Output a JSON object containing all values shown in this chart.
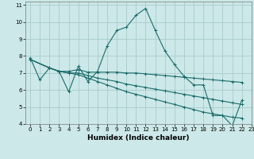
{
  "xlabel": "Humidex (Indice chaleur)",
  "bg_color": "#cce8e8",
  "grid_color": "#aacccc",
  "line_color": "#1a6b6b",
  "xlim": [
    -0.5,
    23
  ],
  "ylim": [
    4,
    11.2
  ],
  "yticks": [
    4,
    5,
    6,
    7,
    8,
    9,
    10,
    11
  ],
  "xticks": [
    0,
    1,
    2,
    3,
    4,
    5,
    6,
    7,
    8,
    9,
    10,
    11,
    12,
    13,
    14,
    15,
    16,
    17,
    18,
    19,
    20,
    21,
    22,
    23
  ],
  "line1_x": [
    0,
    1,
    2,
    3,
    4,
    5,
    6,
    7,
    8,
    9,
    10,
    11,
    12,
    13,
    14,
    15,
    16,
    17,
    18,
    19,
    20,
    21,
    22
  ],
  "line1_y": [
    7.9,
    6.6,
    7.3,
    7.1,
    5.9,
    7.4,
    6.5,
    7.1,
    8.6,
    9.5,
    9.7,
    10.4,
    10.8,
    9.5,
    8.3,
    7.5,
    6.8,
    6.3,
    6.3,
    4.5,
    4.5,
    3.9,
    5.4
  ],
  "line2_x": [
    0,
    2,
    3,
    4,
    5,
    6,
    7,
    8,
    9,
    10,
    11,
    12,
    13,
    14,
    15,
    16,
    17,
    18,
    19,
    20,
    21,
    22
  ],
  "line2_y": [
    7.8,
    7.3,
    7.1,
    7.1,
    7.2,
    7.05,
    7.05,
    7.05,
    7.05,
    7.0,
    7.0,
    6.95,
    6.9,
    6.85,
    6.8,
    6.75,
    6.7,
    6.65,
    6.6,
    6.55,
    6.5,
    6.45
  ],
  "line3_x": [
    0,
    2,
    3,
    4,
    5,
    6,
    7,
    8,
    9,
    10,
    11,
    12,
    13,
    14,
    15,
    16,
    17,
    18,
    19,
    20,
    21,
    22
  ],
  "line3_y": [
    7.8,
    7.3,
    7.1,
    7.0,
    7.0,
    6.85,
    6.7,
    6.6,
    6.5,
    6.35,
    6.25,
    6.15,
    6.05,
    5.95,
    5.85,
    5.75,
    5.65,
    5.55,
    5.45,
    5.35,
    5.25,
    5.15
  ],
  "line4_x": [
    0,
    2,
    3,
    4,
    5,
    6,
    7,
    8,
    9,
    10,
    11,
    12,
    13,
    14,
    15,
    16,
    17,
    18,
    19,
    20,
    21,
    22
  ],
  "line4_y": [
    7.8,
    7.3,
    7.1,
    7.0,
    6.9,
    6.7,
    6.5,
    6.3,
    6.1,
    5.9,
    5.75,
    5.6,
    5.45,
    5.3,
    5.15,
    5.0,
    4.85,
    4.7,
    4.6,
    4.5,
    4.4,
    4.35
  ]
}
